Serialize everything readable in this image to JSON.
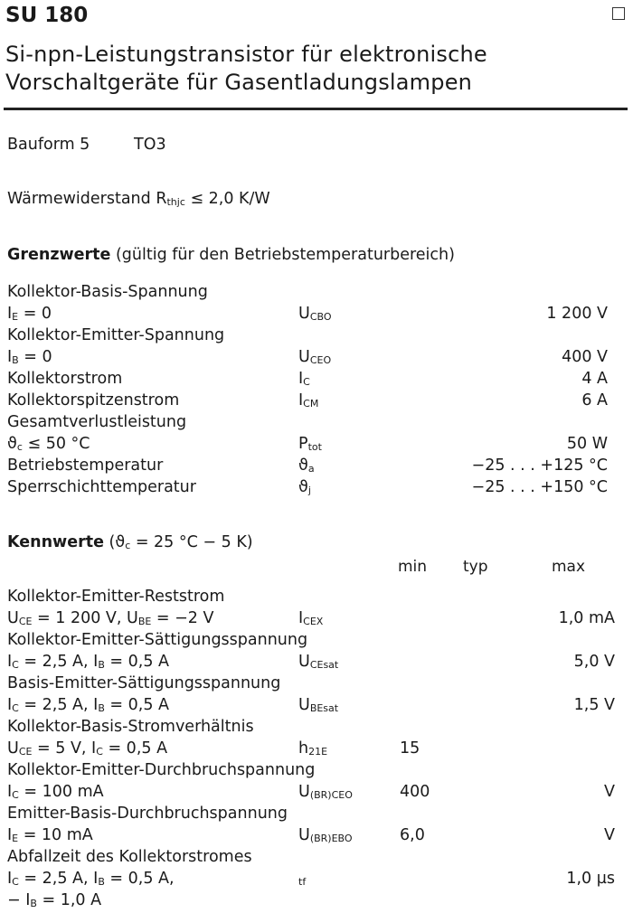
{
  "header": {
    "title": "SU 180",
    "subtitle_line1": "Si-npn-Leistungstransistor für elektronische",
    "subtitle_line2": "Vorschaltgeräte für Gasentladungslampen"
  },
  "bauform": {
    "label": "Bauform 5",
    "package": "TO3"
  },
  "thermal": {
    "label": "Wärmewiderstand R",
    "sub": "thjc",
    "rest": " ≤ 2,0 K/W"
  },
  "grenzwerte": {
    "heading": "Grenzwerte",
    "note": " (gültig für den Betriebstemperaturbereich)",
    "rows": [
      {
        "cond": [
          {
            "t": "Kollektor-Basis-Spannung"
          }
        ]
      },
      {
        "cond": [
          {
            "t": "I"
          },
          {
            "s": "E"
          },
          {
            "t": " = 0"
          }
        ],
        "sym": [
          {
            "t": "U"
          },
          {
            "s": "CBO"
          }
        ],
        "max": "1 200 V"
      },
      {
        "cond": [
          {
            "t": "Kollektor-Emitter-Spannung"
          }
        ]
      },
      {
        "cond": [
          {
            "t": "I"
          },
          {
            "s": "B"
          },
          {
            "t": " = 0"
          }
        ],
        "sym": [
          {
            "t": "U"
          },
          {
            "s": "CEO"
          }
        ],
        "max": "400 V"
      },
      {
        "cond": [
          {
            "t": "Kollektorstrom"
          }
        ],
        "sym": [
          {
            "t": "I"
          },
          {
            "s": "C"
          }
        ],
        "max": "4 A"
      },
      {
        "cond": [
          {
            "t": "Kollektorspitzenstrom"
          }
        ],
        "sym": [
          {
            "t": "I"
          },
          {
            "s": "CM"
          }
        ],
        "max": "6 A"
      },
      {
        "cond": [
          {
            "t": "Gesamtverlustleistung"
          }
        ]
      },
      {
        "cond": [
          {
            "t": "ϑ"
          },
          {
            "s": "c"
          },
          {
            "t": "  ≤ 50 °C"
          }
        ],
        "sym": [
          {
            "t": "P"
          },
          {
            "s": "tot"
          }
        ],
        "max": "50 W"
      },
      {
        "cond": [
          {
            "t": "Betriebstemperatur"
          }
        ],
        "sym": [
          {
            "t": "ϑ"
          },
          {
            "s": "a"
          }
        ],
        "max": "−25 . . . +125 °C"
      },
      {
        "cond": [
          {
            "t": "Sperrschichttemperatur"
          }
        ],
        "sym": [
          {
            "t": "ϑ"
          },
          {
            "s": "j"
          }
        ],
        "max": "−25 . . . +150 °C"
      }
    ]
  },
  "kennwerte": {
    "heading": "Kennwerte",
    "note": " (ϑ",
    "note_sub": "c",
    "note_rest": " = 25 °C − 5 K)",
    "col_min": "min",
    "col_typ": "typ",
    "col_max": "max",
    "rows": [
      {
        "cond": [
          {
            "t": "Kollektor-Emitter-Reststrom"
          }
        ]
      },
      {
        "cond": [
          {
            "t": "U"
          },
          {
            "s": "CE"
          },
          {
            "t": " = 1 200 V, U"
          },
          {
            "s": "BE"
          },
          {
            "t": " = −2 V"
          }
        ],
        "sym": [
          {
            "t": "I"
          },
          {
            "s": "CEX"
          }
        ],
        "max": "1,0 mA"
      },
      {
        "cond": [
          {
            "t": "Kollektor-Emitter-Sättigungsspannung"
          }
        ]
      },
      {
        "cond": [
          {
            "t": "I"
          },
          {
            "s": "C"
          },
          {
            "t": " = 2,5 A, I"
          },
          {
            "s": "B"
          },
          {
            "t": " = 0,5 A"
          }
        ],
        "sym": [
          {
            "t": "U"
          },
          {
            "s": "CEsat"
          }
        ],
        "max": "5,0 V"
      },
      {
        "cond": [
          {
            "t": "Basis-Emitter-Sättigungsspannung"
          }
        ]
      },
      {
        "cond": [
          {
            "t": "I"
          },
          {
            "s": "C"
          },
          {
            "t": " = 2,5 A, I"
          },
          {
            "s": "B"
          },
          {
            "t": " = 0,5 A"
          }
        ],
        "sym": [
          {
            "t": "U"
          },
          {
            "s": "BEsat"
          }
        ],
        "max": "1,5 V"
      },
      {
        "cond": [
          {
            "t": "Kollektor-Basis-Stromverhältnis"
          }
        ]
      },
      {
        "cond": [
          {
            "t": "U"
          },
          {
            "s": "CE"
          },
          {
            "t": " = 5 V, I"
          },
          {
            "s": "C"
          },
          {
            "t": " = 0,5 A"
          }
        ],
        "sym": [
          {
            "t": "h"
          },
          {
            "s": "21E"
          }
        ],
        "min": "15"
      },
      {
        "cond": [
          {
            "t": "Kollektor-Emitter-Durchbruchspannung"
          }
        ]
      },
      {
        "cond": [
          {
            "t": "I"
          },
          {
            "s": "C"
          },
          {
            "t": " = 100 mA"
          }
        ],
        "sym": [
          {
            "t": "U"
          },
          {
            "s": "(BR)CEO"
          }
        ],
        "min": "400",
        "max": "V"
      },
      {
        "cond": [
          {
            "t": "Emitter-Basis-Durchbruchspannung"
          }
        ]
      },
      {
        "cond": [
          {
            "t": "I"
          },
          {
            "s": "E"
          },
          {
            "t": " = 10 mA"
          }
        ],
        "sym": [
          {
            "t": "U"
          },
          {
            "s": "(BR)EBO"
          }
        ],
        "min": "6,0",
        "max": "V"
      },
      {
        "cond": [
          {
            "t": "Abfallzeit des Kollektorstromes"
          }
        ]
      },
      {
        "cond": [
          {
            "t": "I"
          },
          {
            "s": "C"
          },
          {
            "t": " = 2,5 A, I"
          },
          {
            "s": "B"
          },
          {
            "t": " = 0,5 A,"
          }
        ],
        "sym": [
          {
            "s": "tf"
          }
        ],
        "max": "1,0 µs"
      },
      {
        "cond": [
          {
            "t": "− I"
          },
          {
            "s": "B"
          },
          {
            "t": " = 1,0 A"
          }
        ]
      }
    ]
  }
}
